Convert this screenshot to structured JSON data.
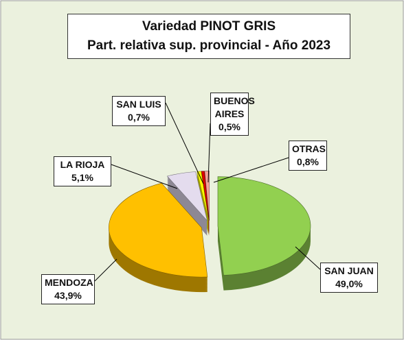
{
  "chart_data": {
    "type": "pie",
    "title": "Variedad PINOT GRIS",
    "subtitle": "Part. relativa sup. provincial - Año 2023",
    "categories": [
      "SAN JUAN",
      "MENDOZA",
      "LA RIOJA",
      "SAN LUIS",
      "BUENOS AIRES",
      "OTRAS"
    ],
    "values": [
      49.0,
      43.9,
      5.1,
      0.7,
      0.5,
      0.8
    ],
    "value_labels": [
      "49,0%",
      "43,9%",
      "5,1%",
      "0,7%",
      "0,5%",
      "0,8%"
    ],
    "colors": [
      "#92d050",
      "#ffc000",
      "#e4dcee",
      "#ffff00",
      "#e00000",
      "#f4a49c"
    ]
  }
}
